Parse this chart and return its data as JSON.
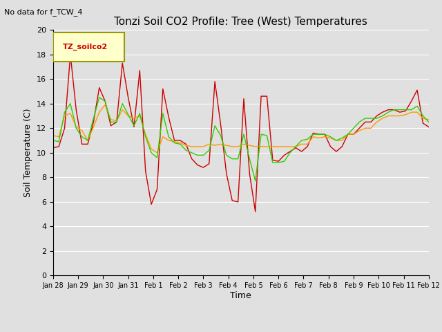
{
  "title": "Tonzi Soil CO2 Profile: Tree (West) Temperatures",
  "subtitle": "No data for f_TCW_4",
  "xlabel": "Time",
  "ylabel": "Soil Temperature (C)",
  "ylim": [
    0,
    20
  ],
  "background_color": "#e0e0e0",
  "legend_box_label": "TZ_soilco2",
  "legend_box_color": "#ffffcc",
  "legend_box_edge": "#999900",
  "tick_labels": [
    "Jan 28",
    "Jan 29",
    "Jan 30",
    "Jan 31",
    "Feb 1",
    "Feb 2",
    "Feb 3",
    "Feb 4",
    "Feb 5",
    "Feb 6",
    "Feb 7",
    "Feb 8",
    "Feb 9",
    "Feb 10",
    "Feb 11",
    "Feb 12"
  ],
  "series": {
    "red": {
      "color": "#cc0000",
      "data": [
        [
          0.0,
          10.4
        ],
        [
          0.05,
          10.5
        ],
        [
          0.1,
          12.0
        ],
        [
          0.15,
          18.0
        ],
        [
          0.2,
          13.5
        ],
        [
          0.25,
          10.7
        ],
        [
          0.3,
          10.7
        ],
        [
          0.35,
          12.5
        ],
        [
          0.4,
          15.3
        ],
        [
          0.45,
          14.2
        ],
        [
          0.5,
          12.2
        ],
        [
          0.55,
          12.5
        ],
        [
          0.6,
          17.3
        ],
        [
          0.65,
          14.5
        ],
        [
          0.7,
          12.1
        ],
        [
          0.75,
          16.7
        ],
        [
          0.8,
          8.5
        ],
        [
          0.85,
          5.8
        ],
        [
          0.9,
          7.0
        ],
        [
          0.95,
          15.2
        ],
        [
          1.0,
          12.9
        ],
        [
          1.05,
          11.0
        ],
        [
          1.1,
          11.0
        ],
        [
          1.15,
          10.7
        ],
        [
          1.2,
          9.5
        ],
        [
          1.25,
          9.0
        ],
        [
          1.3,
          8.8
        ],
        [
          1.35,
          9.1
        ],
        [
          1.4,
          15.8
        ],
        [
          1.45,
          12.3
        ],
        [
          1.5,
          8.3
        ],
        [
          1.55,
          6.1
        ],
        [
          1.6,
          6.0
        ],
        [
          1.65,
          14.4
        ],
        [
          1.7,
          8.3
        ],
        [
          1.75,
          5.2
        ],
        [
          1.8,
          14.6
        ],
        [
          1.85,
          14.6
        ],
        [
          1.9,
          9.4
        ],
        [
          1.95,
          9.3
        ],
        [
          2.0,
          9.8
        ],
        [
          2.05,
          10.1
        ],
        [
          2.1,
          10.4
        ],
        [
          2.15,
          10.1
        ],
        [
          2.2,
          10.5
        ],
        [
          2.25,
          11.6
        ],
        [
          2.3,
          11.5
        ],
        [
          2.35,
          11.5
        ],
        [
          2.4,
          10.5
        ],
        [
          2.45,
          10.1
        ],
        [
          2.5,
          10.5
        ],
        [
          2.55,
          11.5
        ],
        [
          2.6,
          11.5
        ],
        [
          2.65,
          12.0
        ],
        [
          2.7,
          12.5
        ],
        [
          2.75,
          12.5
        ],
        [
          2.8,
          13.0
        ],
        [
          2.85,
          13.3
        ],
        [
          2.9,
          13.5
        ],
        [
          2.95,
          13.5
        ],
        [
          3.0,
          13.3
        ],
        [
          3.05,
          13.4
        ],
        [
          3.1,
          14.2
        ],
        [
          3.15,
          15.1
        ],
        [
          3.2,
          12.4
        ],
        [
          3.25,
          12.1
        ]
      ]
    },
    "orange": {
      "color": "#ff9900",
      "data": [
        [
          0.0,
          11.4
        ],
        [
          0.05,
          11.3
        ],
        [
          0.1,
          13.0
        ],
        [
          0.15,
          13.2
        ],
        [
          0.2,
          12.1
        ],
        [
          0.25,
          11.8
        ],
        [
          0.3,
          11.0
        ],
        [
          0.35,
          12.1
        ],
        [
          0.4,
          13.3
        ],
        [
          0.45,
          13.9
        ],
        [
          0.5,
          12.7
        ],
        [
          0.55,
          12.6
        ],
        [
          0.6,
          13.5
        ],
        [
          0.65,
          13.0
        ],
        [
          0.7,
          12.8
        ],
        [
          0.75,
          13.0
        ],
        [
          0.8,
          11.5
        ],
        [
          0.85,
          10.3
        ],
        [
          0.9,
          10.0
        ],
        [
          0.95,
          11.3
        ],
        [
          1.0,
          11.0
        ],
        [
          1.05,
          10.9
        ],
        [
          1.1,
          10.8
        ],
        [
          1.15,
          10.6
        ],
        [
          1.2,
          10.5
        ],
        [
          1.25,
          10.5
        ],
        [
          1.3,
          10.5
        ],
        [
          1.35,
          10.7
        ],
        [
          1.4,
          10.6
        ],
        [
          1.45,
          10.7
        ],
        [
          1.5,
          10.6
        ],
        [
          1.55,
          10.5
        ],
        [
          1.6,
          10.5
        ],
        [
          1.65,
          10.7
        ],
        [
          1.7,
          10.6
        ],
        [
          1.75,
          10.5
        ],
        [
          1.8,
          10.5
        ],
        [
          1.85,
          10.5
        ],
        [
          1.9,
          10.5
        ],
        [
          1.95,
          10.5
        ],
        [
          2.0,
          10.5
        ],
        [
          2.05,
          10.5
        ],
        [
          2.1,
          10.5
        ],
        [
          2.15,
          10.7
        ],
        [
          2.2,
          10.7
        ],
        [
          2.25,
          11.3
        ],
        [
          2.3,
          11.2
        ],
        [
          2.35,
          11.3
        ],
        [
          2.4,
          11.2
        ],
        [
          2.45,
          11.0
        ],
        [
          2.5,
          11.0
        ],
        [
          2.55,
          11.5
        ],
        [
          2.6,
          11.5
        ],
        [
          2.65,
          11.8
        ],
        [
          2.7,
          12.0
        ],
        [
          2.75,
          12.0
        ],
        [
          2.8,
          12.5
        ],
        [
          2.85,
          12.8
        ],
        [
          2.9,
          13.0
        ],
        [
          2.95,
          13.0
        ],
        [
          3.0,
          13.0
        ],
        [
          3.05,
          13.1
        ],
        [
          3.1,
          13.3
        ],
        [
          3.15,
          13.3
        ],
        [
          3.2,
          12.8
        ],
        [
          3.25,
          12.7
        ]
      ]
    },
    "green": {
      "color": "#33cc00",
      "data": [
        [
          0.0,
          11.0
        ],
        [
          0.05,
          10.9
        ],
        [
          0.1,
          13.3
        ],
        [
          0.15,
          14.0
        ],
        [
          0.2,
          12.0
        ],
        [
          0.25,
          11.3
        ],
        [
          0.3,
          11.0
        ],
        [
          0.35,
          12.8
        ],
        [
          0.4,
          14.5
        ],
        [
          0.45,
          14.2
        ],
        [
          0.5,
          12.5
        ],
        [
          0.55,
          12.5
        ],
        [
          0.6,
          14.0
        ],
        [
          0.65,
          13.1
        ],
        [
          0.7,
          12.2
        ],
        [
          0.75,
          13.2
        ],
        [
          0.8,
          11.3
        ],
        [
          0.85,
          10.0
        ],
        [
          0.9,
          9.6
        ],
        [
          0.95,
          13.2
        ],
        [
          1.0,
          11.3
        ],
        [
          1.05,
          10.8
        ],
        [
          1.1,
          10.7
        ],
        [
          1.15,
          10.2
        ],
        [
          1.2,
          10.0
        ],
        [
          1.25,
          9.8
        ],
        [
          1.3,
          9.8
        ],
        [
          1.35,
          10.2
        ],
        [
          1.4,
          12.2
        ],
        [
          1.45,
          11.4
        ],
        [
          1.5,
          9.8
        ],
        [
          1.55,
          9.5
        ],
        [
          1.6,
          9.5
        ],
        [
          1.65,
          11.5
        ],
        [
          1.7,
          9.5
        ],
        [
          1.75,
          7.7
        ],
        [
          1.8,
          11.5
        ],
        [
          1.85,
          11.4
        ],
        [
          1.9,
          9.2
        ],
        [
          1.95,
          9.2
        ],
        [
          2.0,
          9.3
        ],
        [
          2.05,
          10.0
        ],
        [
          2.1,
          10.5
        ],
        [
          2.15,
          11.0
        ],
        [
          2.2,
          11.1
        ],
        [
          2.25,
          11.5
        ],
        [
          2.3,
          11.5
        ],
        [
          2.35,
          11.5
        ],
        [
          2.4,
          11.3
        ],
        [
          2.45,
          11.0
        ],
        [
          2.5,
          11.2
        ],
        [
          2.55,
          11.5
        ],
        [
          2.6,
          12.0
        ],
        [
          2.65,
          12.5
        ],
        [
          2.7,
          12.8
        ],
        [
          2.75,
          12.8
        ],
        [
          2.8,
          12.8
        ],
        [
          2.85,
          13.0
        ],
        [
          2.9,
          13.3
        ],
        [
          2.95,
          13.5
        ],
        [
          3.0,
          13.5
        ],
        [
          3.05,
          13.5
        ],
        [
          3.1,
          13.5
        ],
        [
          3.15,
          13.8
        ],
        [
          3.2,
          13.0
        ],
        [
          3.25,
          12.5
        ]
      ]
    }
  }
}
